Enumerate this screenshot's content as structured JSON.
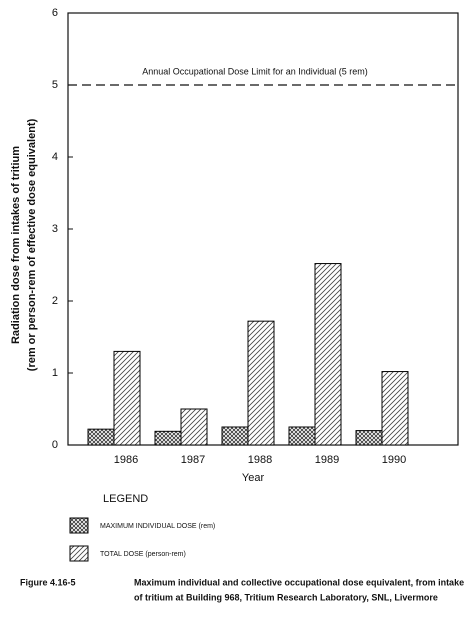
{
  "chart_data": {
    "type": "bar",
    "categories": [
      "1986",
      "1987",
      "1988",
      "1989",
      "1990"
    ],
    "series": [
      {
        "name": "MAXIMUM INDIVIDUAL DOSE (rem)",
        "color": "#000000",
        "values": [
          0.22,
          0.19,
          0.25,
          0.25,
          0.2
        ]
      },
      {
        "name": "TOTAL DOSE (person-rem)",
        "color": "#000000",
        "values": [
          1.3,
          0.5,
          1.72,
          2.52,
          1.02
        ]
      }
    ],
    "ylim": [
      0,
      6
    ],
    "yticks": [
      0,
      1,
      2,
      3,
      4,
      5,
      6
    ],
    "y_label": [
      "Radiation dose from intakes of tritium",
      "(rem or person-rem of effective dose equivalent)"
    ],
    "x_label": "Year",
    "reference_line": {
      "value": 5,
      "label": "Annual Occupational Dose Limit for an Individual (5 rem)"
    },
    "legend_title": "LEGEND",
    "caption": {
      "number": "Figure 4.16-5",
      "lines": [
        "Maximum individual and collective occupational dose equivalent, from intakes",
        "of tritium at Building 968, Tritium Research Laboratory, SNL, Livermore"
      ]
    }
  }
}
